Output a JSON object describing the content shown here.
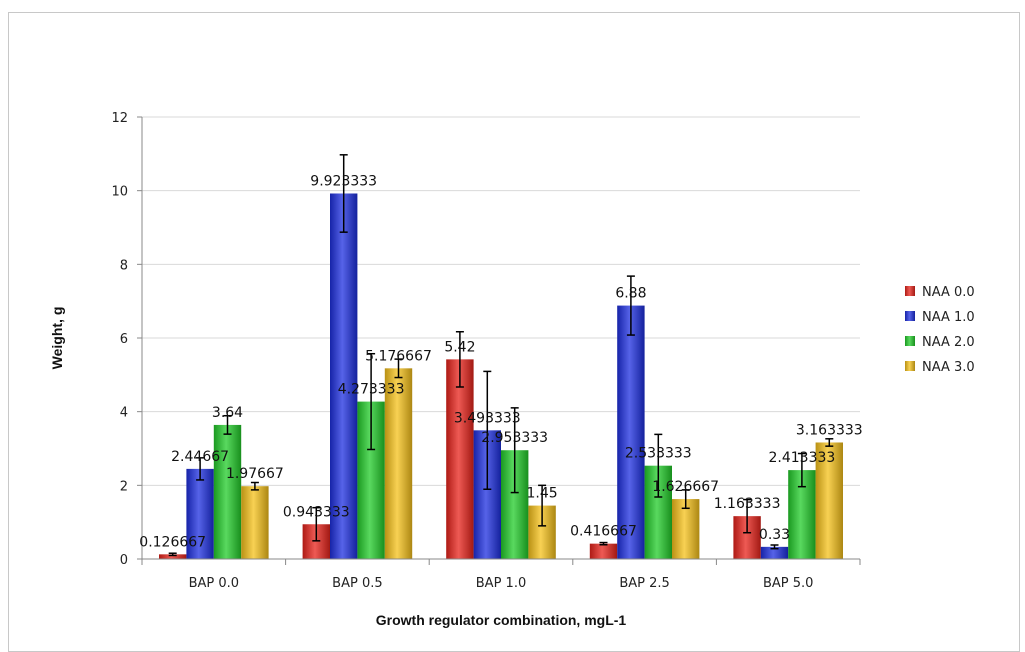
{
  "chart_data": {
    "type": "bar",
    "xlabel": "Growth regulator combination,  mgL-1",
    "ylabel": "Weight, g",
    "ylim": [
      0,
      12
    ],
    "yticks": [
      0,
      2,
      4,
      6,
      8,
      10,
      12
    ],
    "grid": true,
    "legend_position": "right",
    "categories": [
      "BAP 0.0",
      "BAP 0.5",
      "BAP 1.0",
      "BAP 2.5",
      "BAP 5.0"
    ],
    "series": [
      {
        "name": "NAA 0.0",
        "color": "#e8231b",
        "values": [
          0.126667,
          0.943333,
          5.42,
          0.416667,
          1.163333
        ],
        "labels": [
          "0.126667",
          "0.943333",
          "5.42",
          "0.416667",
          "1.163333"
        ],
        "errors": [
          0.03,
          0.45,
          0.75,
          0.03,
          0.45
        ]
      },
      {
        "name": "NAA 1.0",
        "color": "#1d2fe0",
        "values": [
          2.44667,
          9.923333,
          3.493333,
          6.88,
          0.33
        ],
        "labels": [
          "2.44667",
          "9.923333",
          "3.493333",
          "6.88",
          "0.33"
        ],
        "errors": [
          0.3,
          1.05,
          1.6,
          0.8,
          0.05
        ]
      },
      {
        "name": "NAA 2.0",
        "color": "#22cc2a",
        "values": [
          3.64,
          4.273333,
          2.953333,
          2.533333,
          2.413333
        ],
        "labels": [
          "3.64",
          "4.273333",
          "2.953333",
          "2.533333",
          "2.413333"
        ],
        "errors": [
          0.25,
          1.3,
          1.15,
          0.85,
          0.45
        ]
      },
      {
        "name": "NAA 3.0",
        "color": "#f6c11a",
        "values": [
          1.97667,
          5.176667,
          1.45,
          1.626667,
          3.163333
        ],
        "labels": [
          "1.97667",
          "5.176667",
          "1.45",
          "1.626667",
          "3.163333"
        ],
        "errors": [
          0.1,
          0.25,
          0.55,
          0.25,
          0.1
        ]
      }
    ]
  }
}
